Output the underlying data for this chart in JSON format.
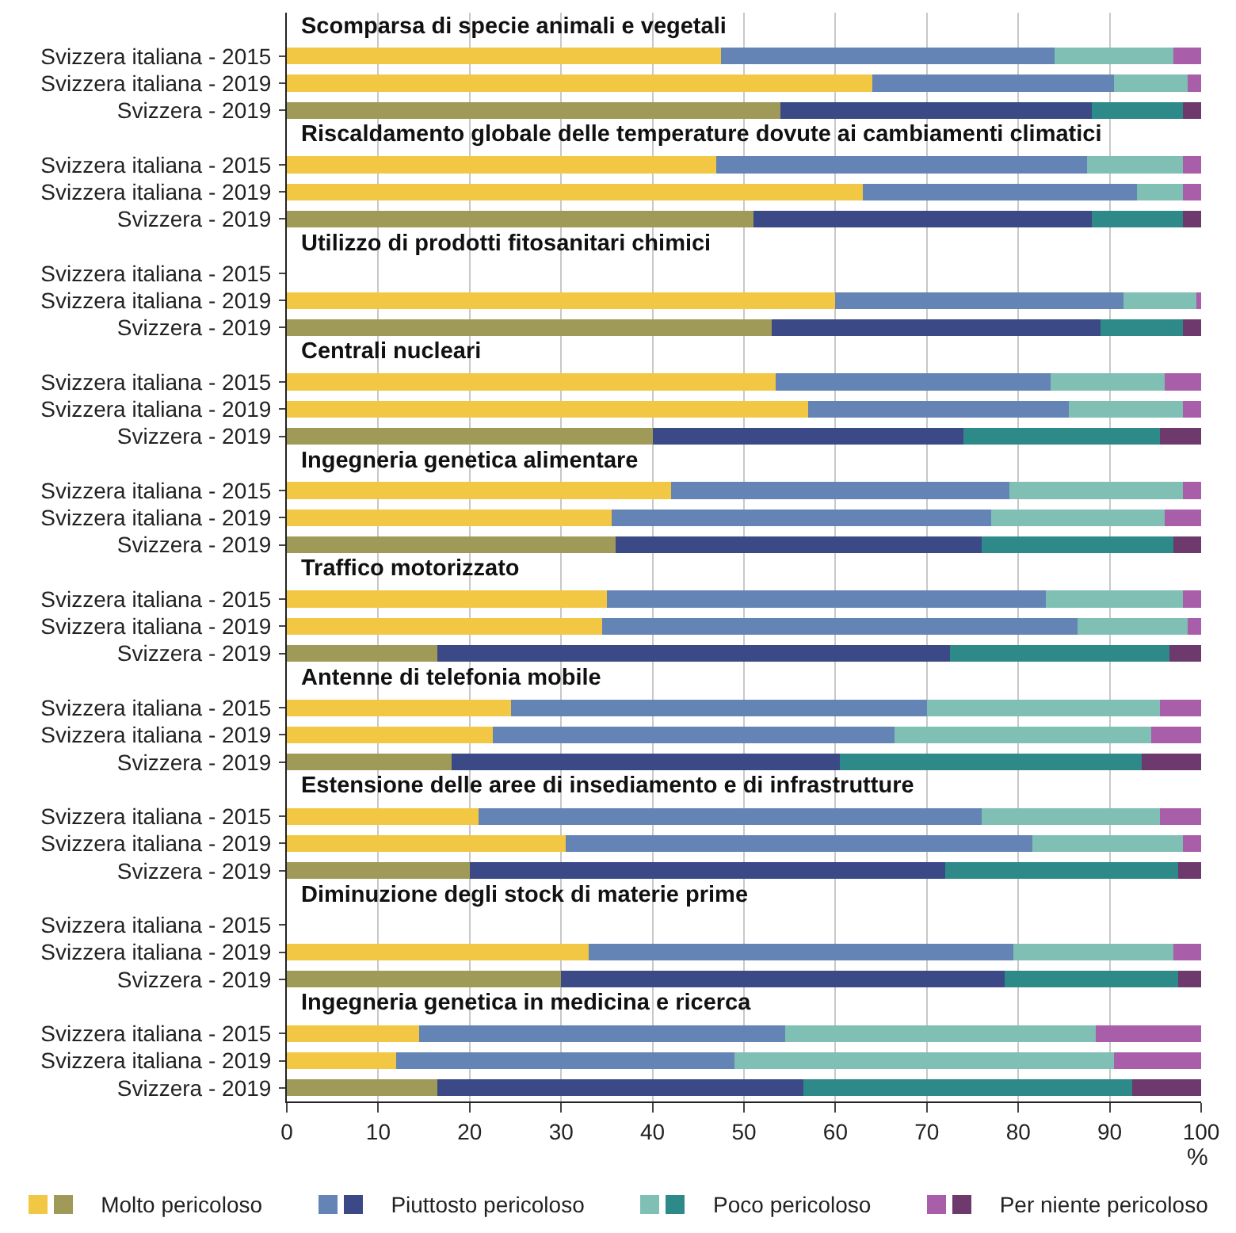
{
  "chart_data": {
    "type": "bar",
    "orientation": "horizontal",
    "stacked": true,
    "categories": [
      "Svizzera italiana - 2015",
      "Svizzera italiana - 2019",
      "Svizzera - 2019",
      "Svizzera italiana - 2015",
      "Svizzera italiana - 2019",
      "Svizzera - 2019",
      "Svizzera italiana - 2015",
      "Svizzera italiana - 2019",
      "Svizzera - 2019",
      "Svizzera italiana - 2015",
      "Svizzera italiana - 2019",
      "Svizzera - 2019",
      "Svizzera italiana - 2015",
      "Svizzera italiana - 2019",
      "Svizzera - 2019",
      "Svizzera italiana - 2015",
      "Svizzera italiana - 2019",
      "Svizzera - 2019",
      "Svizzera italiana - 2015",
      "Svizzera italiana - 2019",
      "Svizzera - 2019",
      "Svizzera italiana - 2015",
      "Svizzera italiana - 2019",
      "Svizzera - 2019",
      "Svizzera italiana - 2015",
      "Svizzera italiana - 2019",
      "Svizzera - 2019",
      "Svizzera italiana - 2015",
      "Svizzera italiana - 2019",
      "Svizzera - 2019"
    ],
    "annotations": [
      "Scomparsa di specie animali e vegetali",
      "Riscaldamento globale delle temperature dovute ai cambiamenti climatici",
      "Utilizzo di prodotti fitosanitari chimici",
      "Centrali nucleari",
      "Ingegneria genetica alimentare",
      "Traffico motorizzato",
      "Antenne di telefonia mobile",
      "Estensione delle aree di insediamento e di infrastrutture",
      "Diminuzione degli stock di materie prime",
      "Ingegneria genetica in medicina e ricerca"
    ],
    "xlabel": "%",
    "xlim": [
      0,
      100
    ],
    "xticks": [
      0,
      10,
      20,
      30,
      40,
      50,
      60,
      70,
      80,
      90,
      100
    ],
    "grid": "x",
    "legend": "bottom",
    "series": [
      {
        "name": "Molto pericoloso",
        "colors": [
          "#f2c744",
          "#f2c744",
          "#a09a58",
          "#f2c744",
          "#f2c744",
          "#a09a58",
          "#f2c744",
          "#f2c744",
          "#a09a58",
          "#f2c744",
          "#f2c744",
          "#a09a58",
          "#f2c744",
          "#f2c744",
          "#a09a58",
          "#f2c744",
          "#f2c744",
          "#a09a58",
          "#f2c744",
          "#f2c744",
          "#a09a58",
          "#f2c744",
          "#f2c744",
          "#a09a58",
          "#f2c744",
          "#f2c744",
          "#a09a58",
          "#f2c744",
          "#f2c744",
          "#a09a58"
        ],
        "values": [
          47.5,
          64,
          54,
          47,
          63,
          51,
          null,
          60,
          53,
          53.5,
          57,
          40,
          42,
          35.5,
          36,
          35,
          34.5,
          16.5,
          24.5,
          22.5,
          18,
          21,
          30.5,
          20,
          null,
          33,
          30,
          14.5,
          12,
          16.5
        ]
      },
      {
        "name": "Piuttosto pericoloso",
        "colors": [
          "#6384b4",
          "#6384b4",
          "#3b4a86",
          "#6384b4",
          "#6384b4",
          "#3b4a86",
          "#6384b4",
          "#6384b4",
          "#3b4a86",
          "#6384b4",
          "#6384b4",
          "#3b4a86",
          "#6384b4",
          "#6384b4",
          "#3b4a86",
          "#6384b4",
          "#6384b4",
          "#3b4a86",
          "#6384b4",
          "#6384b4",
          "#3b4a86",
          "#6384b4",
          "#6384b4",
          "#3b4a86",
          "#6384b4",
          "#6384b4",
          "#3b4a86",
          "#6384b4",
          "#6384b4",
          "#3b4a86"
        ],
        "values": [
          36.5,
          26.5,
          34,
          40.5,
          30,
          37,
          null,
          31.5,
          36,
          30,
          28.5,
          34,
          37,
          41.5,
          40,
          48,
          52,
          56,
          45.5,
          44,
          42.5,
          55,
          51,
          52,
          null,
          46.5,
          48.5,
          40,
          37,
          40
        ]
      },
      {
        "name": "Poco pericoloso",
        "colors": [
          "#7fbfb4",
          "#7fbfb4",
          "#2e8a88",
          "#7fbfb4",
          "#7fbfb4",
          "#2e8a88",
          "#7fbfb4",
          "#7fbfb4",
          "#2e8a88",
          "#7fbfb4",
          "#7fbfb4",
          "#2e8a88",
          "#7fbfb4",
          "#7fbfb4",
          "#2e8a88",
          "#7fbfb4",
          "#7fbfb4",
          "#2e8a88",
          "#7fbfb4",
          "#7fbfb4",
          "#2e8a88",
          "#7fbfb4",
          "#7fbfb4",
          "#2e8a88",
          "#7fbfb4",
          "#7fbfb4",
          "#2e8a88",
          "#7fbfb4",
          "#7fbfb4",
          "#2e8a88"
        ],
        "values": [
          13,
          8,
          10,
          10.5,
          5,
          10,
          null,
          8,
          9,
          12.5,
          12.5,
          21.5,
          19,
          19,
          21,
          15,
          12,
          24,
          25.5,
          28,
          33,
          19.5,
          16.5,
          25.5,
          null,
          17.5,
          19,
          34,
          41.5,
          36
        ]
      },
      {
        "name": "Per niente pericoloso",
        "colors": [
          "#a85ea8",
          "#a85ea8",
          "#6e3a6e",
          "#a85ea8",
          "#a85ea8",
          "#6e3a6e",
          "#a85ea8",
          "#a85ea8",
          "#6e3a6e",
          "#a85ea8",
          "#a85ea8",
          "#6e3a6e",
          "#a85ea8",
          "#a85ea8",
          "#6e3a6e",
          "#a85ea8",
          "#a85ea8",
          "#6e3a6e",
          "#a85ea8",
          "#a85ea8",
          "#6e3a6e",
          "#a85ea8",
          "#a85ea8",
          "#6e3a6e",
          "#a85ea8",
          "#a85ea8",
          "#6e3a6e",
          "#a85ea8",
          "#a85ea8",
          "#6e3a6e"
        ],
        "values": [
          3,
          1.5,
          2,
          2,
          2,
          2,
          null,
          0.5,
          2,
          4,
          2,
          4.5,
          2,
          4,
          3,
          2,
          1.5,
          3.5,
          4.5,
          5.5,
          6.5,
          4.5,
          2,
          2.5,
          null,
          3,
          2.5,
          11.5,
          9.5,
          7.5
        ]
      }
    ]
  }
}
